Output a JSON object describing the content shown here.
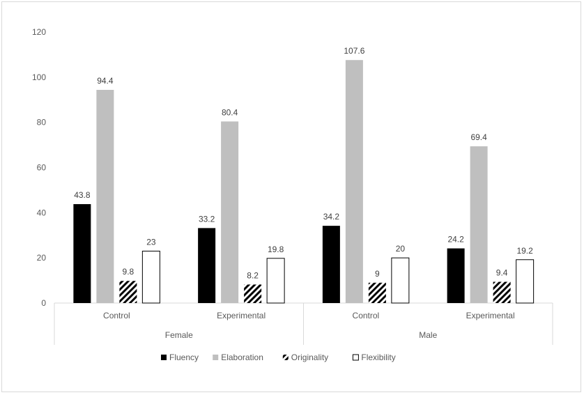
{
  "chart_data": {
    "type": "bar",
    "title": "",
    "xlabel": "",
    "ylabel": "",
    "ylim": [
      0,
      120
    ],
    "yticks": [
      0,
      20,
      40,
      60,
      80,
      100,
      120
    ],
    "grid": false,
    "legend_position": "bottom",
    "groups": [
      {
        "label": "Female",
        "categories": [
          "Control",
          "Experimental"
        ]
      },
      {
        "label": "Male",
        "categories": [
          "Control",
          "Experimental"
        ]
      }
    ],
    "series": [
      {
        "name": "Fluency",
        "fill": "#000000",
        "values": [
          43.8,
          33.2,
          34.2,
          24.2
        ],
        "labels": [
          "43.8",
          "33.2",
          "34.2",
          "24.2"
        ]
      },
      {
        "name": "Elaboration",
        "fill": "#bfbfbf",
        "values": [
          94.4,
          80.4,
          107.6,
          69.4
        ],
        "labels": [
          "94.4",
          "80.4",
          "107.6",
          "69.4"
        ]
      },
      {
        "name": "Originality",
        "fill": "hatch",
        "values": [
          9.8,
          8.2,
          9,
          9.4
        ],
        "labels": [
          "9.8",
          "8.2",
          "9",
          "9.4"
        ]
      },
      {
        "name": "Flexibility",
        "fill": "#ffffff",
        "values": [
          23,
          19.8,
          20,
          19.2
        ],
        "labels": [
          "23",
          "19.8",
          "20",
          "19.2"
        ]
      }
    ]
  }
}
